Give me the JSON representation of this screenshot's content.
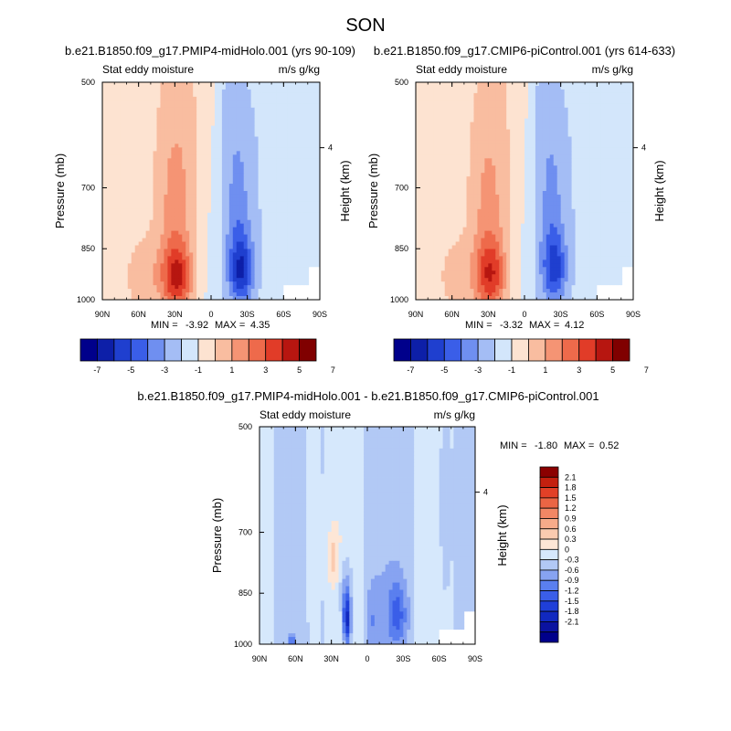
{
  "figure": {
    "title": "SON"
  },
  "scale": {
    "colors_13": [
      "#00008b",
      "#0d1fa8",
      "#1f3fcf",
      "#3a5ee8",
      "#6f8ff0",
      "#a4bdf5",
      "#d3e6fb",
      "#fde3d1",
      "#f9bda0",
      "#f59474",
      "#ee6a4b",
      "#e13c28",
      "#b71610",
      "#800000"
    ],
    "colors_16": [
      "#00008b",
      "#0a12a0",
      "#1129c0",
      "#1f3fd8",
      "#3a5ee8",
      "#5a7fef",
      "#87a3f1",
      "#b2c9f5",
      "#d6e8fc",
      "#fde6d6",
      "#fbcbb0",
      "#f7ab8a",
      "#f28765",
      "#eb6544",
      "#e24027",
      "#c4200f",
      "#8b0000"
    ]
  },
  "chart_data": [
    {
      "id": "panel1",
      "type": "heatmap",
      "title": "b.e21.B1850.f09_g17.PMIP4-midHolo.001 (yrs 90-109)",
      "left_label": "Stat eddy moisture",
      "right_label": "m/s g/kg",
      "xlabel": "",
      "ylabel": "Pressure (mb)",
      "y2label": "Height (km)",
      "xticks": [
        "90N",
        "60N",
        "30N",
        "0",
        "30S",
        "60S",
        "90S"
      ],
      "yticks": [
        "500",
        "700",
        "850",
        "1000"
      ],
      "y2ticks": [
        "4"
      ],
      "stats": {
        "min_label": "MIN =",
        "min": "-3.92",
        "max_label": "MAX =",
        "max": "4.35"
      },
      "colorbar": {
        "orientation": "horizontal",
        "labels": [
          "-7",
          "-5",
          "-3",
          "-1",
          "1",
          "3",
          "5",
          "7"
        ]
      },
      "features": [
        {
          "lat": 28,
          "p": 935,
          "amp": 4.2,
          "sx": 9,
          "sy": 70
        },
        {
          "lat": 30,
          "p": 760,
          "amp": 1.6,
          "sx": 10,
          "sy": 150
        },
        {
          "lat": 55,
          "p": 930,
          "amp": 1.2,
          "sx": 12,
          "sy": 80
        },
        {
          "lat": 15,
          "p": 600,
          "amp": 0.9,
          "sx": 25,
          "sy": 200
        },
        {
          "lat": -25,
          "p": 915,
          "amp": -3.9,
          "sx": 7,
          "sy": 70
        },
        {
          "lat": -22,
          "p": 760,
          "amp": -1.8,
          "sx": 8,
          "sy": 130
        },
        {
          "lat": -15,
          "p": 560,
          "amp": -0.7,
          "sx": 12,
          "sy": 90
        },
        {
          "lat": -55,
          "p": 700,
          "amp": -0.6,
          "sx": 40,
          "sy": 300
        },
        {
          "lat": 0,
          "p": 800,
          "amp": -0.7,
          "sx": 10,
          "sy": 250
        }
      ]
    },
    {
      "id": "panel2",
      "type": "heatmap",
      "title": "b.e21.B1850.f09_g17.CMIP6-piControl.001 (yrs 614-633)",
      "left_label": "Stat eddy moisture",
      "right_label": "m/s g/kg",
      "xlabel": "",
      "ylabel": "Pressure (mb)",
      "y2label": "Height (km)",
      "xticks": [
        "90N",
        "60N",
        "30N",
        "0",
        "30S",
        "60S",
        "90S"
      ],
      "yticks": [
        "500",
        "700",
        "850",
        "1000"
      ],
      "y2ticks": [
        "4"
      ],
      "stats": {
        "min_label": "MIN =",
        "min": "-3.32",
        "max_label": "MAX =",
        "max": "4.12"
      },
      "colorbar": {
        "orientation": "horizontal",
        "labels": [
          "-7",
          "-5",
          "-3",
          "-1",
          "1",
          "3",
          "5",
          "7"
        ]
      },
      "features": [
        {
          "lat": 28,
          "p": 930,
          "amp": 3.9,
          "sx": 9,
          "sy": 75
        },
        {
          "lat": 30,
          "p": 760,
          "amp": 1.5,
          "sx": 10,
          "sy": 150
        },
        {
          "lat": 55,
          "p": 930,
          "amp": 1.1,
          "sx": 12,
          "sy": 80
        },
        {
          "lat": 15,
          "p": 600,
          "amp": 0.8,
          "sx": 25,
          "sy": 200
        },
        {
          "lat": -25,
          "p": 910,
          "amp": -3.3,
          "sx": 7,
          "sy": 70
        },
        {
          "lat": -22,
          "p": 760,
          "amp": -1.7,
          "sx": 8,
          "sy": 130
        },
        {
          "lat": -15,
          "p": 560,
          "amp": -0.7,
          "sx": 12,
          "sy": 90
        },
        {
          "lat": -55,
          "p": 700,
          "amp": -0.6,
          "sx": 40,
          "sy": 300
        },
        {
          "lat": 0,
          "p": 800,
          "amp": -0.6,
          "sx": 10,
          "sy": 250
        }
      ]
    },
    {
      "id": "panel3",
      "type": "heatmap",
      "title": "b.e21.B1850.f09_g17.PMIP4-midHolo.001 - b.e21.B1850.f09_g17.CMIP6-piControl.001",
      "left_label": "Stat eddy moisture",
      "right_label": "m/s g/kg",
      "xlabel": "",
      "ylabel": "Pressure (mb)",
      "y2label": "Height (km)",
      "xticks": [
        "90N",
        "60N",
        "30N",
        "0",
        "30S",
        "60S",
        "90S"
      ],
      "yticks": [
        "500",
        "700",
        "850",
        "1000"
      ],
      "y2ticks": [
        "4"
      ],
      "stats": {
        "min_label": "MIN =",
        "min": "-1.80",
        "max_label": "MAX =",
        "max": "0.52"
      },
      "colorbar": {
        "orientation": "vertical",
        "labels": [
          "2.1",
          "1.8",
          "1.5",
          "1.2",
          "0.9",
          "0.6",
          "0.3",
          "0",
          "-0.3",
          "-0.6",
          "-0.9",
          "-1.2",
          "-1.5",
          "-1.8",
          "-2.1"
        ]
      },
      "features": [
        {
          "lat": -60,
          "p": 650,
          "amp": -0.15,
          "sx": 18,
          "sy": 400
        },
        {
          "lat": -10,
          "p": 700,
          "amp": -0.15,
          "sx": 10,
          "sy": 400
        },
        {
          "lat": 20,
          "p": 800,
          "amp": 0.2,
          "sx": 10,
          "sy": 250
        },
        {
          "lat": 45,
          "p": 650,
          "amp": 0.2,
          "sx": 6,
          "sy": 400
        },
        {
          "lat": -45,
          "p": 700,
          "amp": 0.22,
          "sx": 8,
          "sy": 350
        },
        {
          "lat": 17,
          "p": 930,
          "amp": -1.8,
          "sx": 2.5,
          "sy": 55
        },
        {
          "lat": 18,
          "p": 830,
          "amp": -0.6,
          "sx": 4,
          "sy": 60
        },
        {
          "lat": -25,
          "p": 910,
          "amp": -0.9,
          "sx": 6,
          "sy": 70
        },
        {
          "lat": 28,
          "p": 760,
          "amp": 0.5,
          "sx": 3,
          "sy": 40
        },
        {
          "lat": -5,
          "p": 930,
          "amp": -0.4,
          "sx": 4,
          "sy": 60
        },
        {
          "lat": 63,
          "p": 995,
          "amp": -0.9,
          "sx": 2,
          "sy": 15
        }
      ]
    }
  ]
}
